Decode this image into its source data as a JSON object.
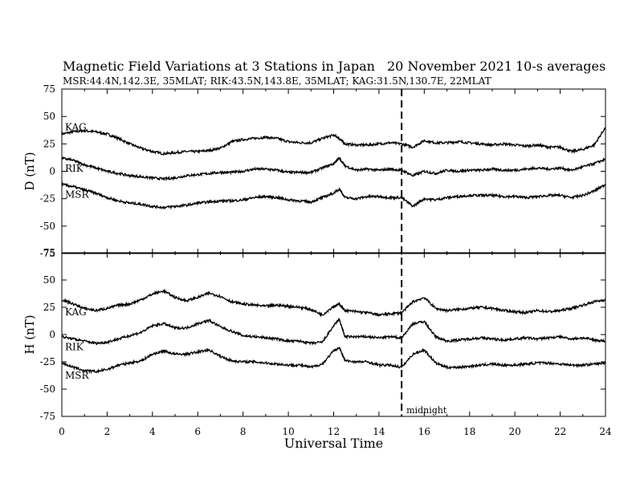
{
  "header": {
    "title": "Magnetic Field Variations at 3 Stations in Japan",
    "date": "20 November 2021",
    "averaging": "10-s averages",
    "stations": "MSR:44.4N,142.3E, 35MLAT;  RIK:43.5N,143.8E, 35MLAT;  KAG:31.5N,130.7E, 22MLAT"
  },
  "chart_data": [
    {
      "type": "line",
      "ylabel": "D (nT)",
      "ylim": [
        -75,
        75
      ],
      "yticks": [
        -75,
        -50,
        -25,
        0,
        25,
        50,
        75
      ],
      "xlim": [
        0,
        24
      ],
      "x": [
        0,
        0.5,
        1,
        1.5,
        2,
        2.5,
        3,
        3.5,
        4,
        4.5,
        5,
        5.5,
        6,
        6.5,
        7,
        7.5,
        8,
        8.5,
        9,
        9.5,
        10,
        10.5,
        11,
        11.5,
        12,
        12.25,
        12.5,
        13,
        13.5,
        14,
        14.5,
        15,
        15.5,
        16,
        16.5,
        17,
        17.5,
        18,
        18.5,
        19,
        19.5,
        20,
        20.5,
        21,
        21.5,
        22,
        22.5,
        23,
        23.5,
        24
      ],
      "series": [
        {
          "name": "KAG",
          "values": [
            34,
            36,
            37,
            36,
            34,
            30,
            25,
            21,
            18,
            16,
            17,
            18,
            18,
            19,
            21,
            27,
            29,
            30,
            31,
            30,
            27,
            26,
            26,
            30,
            33,
            30,
            25,
            24,
            24,
            25,
            26,
            25,
            22,
            28,
            26,
            26,
            27,
            26,
            25,
            24,
            25,
            24,
            23,
            24,
            22,
            22,
            18,
            20,
            24,
            40
          ]
        },
        {
          "name": "RIK",
          "values": [
            12,
            10,
            6,
            3,
            0,
            -2,
            -4,
            -5,
            -6,
            -7,
            -6,
            -4,
            -3,
            -2,
            -1,
            -1,
            0,
            2,
            2,
            1,
            -1,
            -1,
            -1,
            3,
            7,
            12,
            5,
            1,
            2,
            1,
            2,
            1,
            -4,
            0,
            -2,
            1,
            0,
            1,
            1,
            2,
            1,
            1,
            2,
            3,
            2,
            3,
            1,
            4,
            7,
            11
          ]
        },
        {
          "name": "MSR",
          "values": [
            -12,
            -14,
            -17,
            -20,
            -24,
            -27,
            -29,
            -30,
            -32,
            -33,
            -32,
            -31,
            -29,
            -28,
            -27,
            -27,
            -26,
            -24,
            -23,
            -24,
            -26,
            -27,
            -28,
            -24,
            -20,
            -16,
            -24,
            -25,
            -23,
            -23,
            -24,
            -24,
            -32,
            -25,
            -26,
            -24,
            -23,
            -22,
            -22,
            -22,
            -23,
            -23,
            -24,
            -23,
            -22,
            -22,
            -24,
            -22,
            -18,
            -12
          ]
        }
      ]
    },
    {
      "type": "line",
      "ylabel": "H (nT)",
      "xlabel": "Universal Time",
      "ylim": [
        -75,
        75
      ],
      "yticks": [
        -75,
        -50,
        -25,
        0,
        25,
        50,
        75
      ],
      "xlim": [
        0,
        24
      ],
      "xticks": [
        0,
        2,
        4,
        6,
        8,
        10,
        12,
        14,
        16,
        18,
        20,
        22,
        24
      ],
      "x": [
        0,
        0.5,
        1,
        1.5,
        2,
        2.5,
        3,
        3.5,
        4,
        4.5,
        5,
        5.5,
        6,
        6.5,
        7,
        7.5,
        8,
        8.5,
        9,
        9.5,
        10,
        10.5,
        11,
        11.5,
        12,
        12.25,
        12.5,
        13,
        13.5,
        14,
        14.5,
        15,
        15.5,
        16,
        16.5,
        17,
        17.5,
        18,
        18.5,
        19,
        19.5,
        20,
        20.5,
        21,
        21.5,
        22,
        22.5,
        23,
        23.5,
        24
      ],
      "series": [
        {
          "name": "KAG",
          "values": [
            32,
            28,
            24,
            22,
            24,
            27,
            28,
            32,
            37,
            40,
            34,
            31,
            34,
            38,
            35,
            30,
            28,
            27,
            26,
            27,
            26,
            25,
            23,
            18,
            26,
            28,
            22,
            21,
            20,
            18,
            19,
            20,
            30,
            34,
            24,
            22,
            23,
            24,
            25,
            24,
            22,
            21,
            20,
            22,
            21,
            22,
            24,
            27,
            30,
            32
          ]
        },
        {
          "name": "RIK",
          "values": [
            -2,
            -4,
            -6,
            -8,
            -7,
            -4,
            -1,
            2,
            8,
            10,
            6,
            6,
            10,
            13,
            7,
            3,
            -1,
            -2,
            -3,
            -4,
            -6,
            -6,
            -8,
            -7,
            8,
            14,
            -2,
            -2,
            -2,
            -3,
            -2,
            -3,
            10,
            12,
            -2,
            -6,
            -5,
            -4,
            -3,
            -4,
            -5,
            -4,
            -3,
            -4,
            -3,
            -2,
            -4,
            -3,
            -5,
            -6
          ]
        },
        {
          "name": "MSR",
          "values": [
            -26,
            -30,
            -33,
            -34,
            -32,
            -28,
            -26,
            -24,
            -18,
            -15,
            -18,
            -18,
            -16,
            -14,
            -20,
            -24,
            -25,
            -25,
            -26,
            -27,
            -28,
            -28,
            -30,
            -27,
            -15,
            -12,
            -24,
            -25,
            -25,
            -28,
            -28,
            -30,
            -18,
            -14,
            -26,
            -30,
            -30,
            -29,
            -28,
            -27,
            -28,
            -28,
            -27,
            -26,
            -26,
            -27,
            -28,
            -28,
            -27,
            -26
          ]
        }
      ]
    }
  ],
  "marker": {
    "x": 15,
    "label": "midnight"
  }
}
